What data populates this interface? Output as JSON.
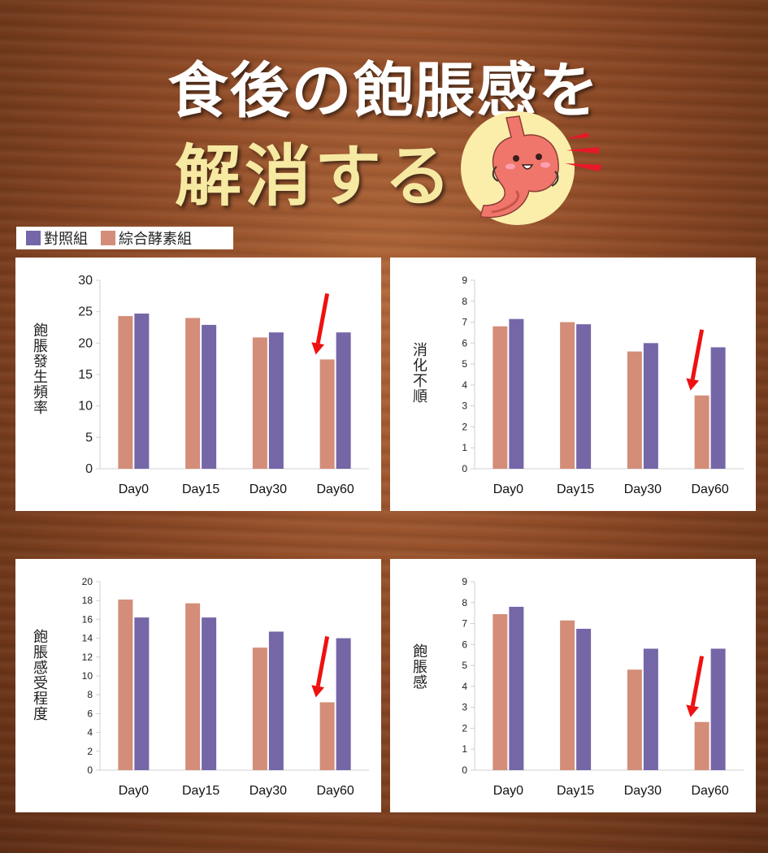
{
  "header": {
    "line1": "食後の飽脹感を",
    "line2": "解消する"
  },
  "colors": {
    "control": "#7566a8",
    "enzyme": "#d38d78",
    "arrow": "#ee1111"
  },
  "icons": [
    "stomach-illustration-icon",
    "red-arrow-icon"
  ],
  "legend": {
    "control": "對照組",
    "enzyme": "綜合酵素組"
  },
  "chart_data": [
    {
      "type": "bar",
      "ylabel": "飽脹發生頻率",
      "categories": [
        "Day0",
        "Day15",
        "Day30",
        "Day60"
      ],
      "ylim": [
        0,
        30
      ],
      "yticks": [
        0,
        5,
        10,
        15,
        20,
        25,
        30
      ],
      "series": [
        {
          "name": "綜合酵素組",
          "values": [
            24.3,
            24,
            20.9,
            17.4
          ]
        },
        {
          "name": "對照組",
          "values": [
            24.7,
            22.9,
            21.7,
            21.7
          ]
        }
      ],
      "annotation": {
        "type": "arrow",
        "category": "Day60",
        "series": "綜合酵素組"
      }
    },
    {
      "type": "bar",
      "ylabel": "消化不順",
      "categories": [
        "Day0",
        "Day15",
        "Day30",
        "Day60"
      ],
      "ylim": [
        0,
        9
      ],
      "yticks": [
        0,
        1,
        2,
        3,
        4,
        5,
        6,
        7,
        8,
        9
      ],
      "series": [
        {
          "name": "綜合酵素組",
          "values": [
            6.8,
            7.0,
            5.6,
            3.5
          ]
        },
        {
          "name": "對照組",
          "values": [
            7.15,
            6.9,
            6.0,
            5.8
          ]
        }
      ],
      "annotation": {
        "type": "arrow",
        "category": "Day60",
        "series": "綜合酵素組"
      }
    },
    {
      "type": "bar",
      "ylabel": "飽脹感受程度",
      "categories": [
        "Day0",
        "Day15",
        "Day30",
        "Day60"
      ],
      "ylim": [
        0,
        20
      ],
      "yticks": [
        0,
        2,
        4,
        6,
        8,
        10,
        12,
        14,
        16,
        18,
        20
      ],
      "series": [
        {
          "name": "綜合酵素組",
          "values": [
            18.1,
            17.7,
            13.0,
            7.2
          ]
        },
        {
          "name": "對照組",
          "values": [
            16.2,
            16.2,
            14.7,
            14.0
          ]
        }
      ],
      "annotation": {
        "type": "arrow",
        "category": "Day60",
        "series": "綜合酵素組"
      }
    },
    {
      "type": "bar",
      "ylabel": "飽脹感",
      "categories": [
        "Day0",
        "Day15",
        "Day30",
        "Day60"
      ],
      "ylim": [
        0,
        9
      ],
      "yticks": [
        0,
        1,
        2,
        3,
        4,
        5,
        6,
        7,
        8,
        9
      ],
      "series": [
        {
          "name": "綜合酵素組",
          "values": [
            7.45,
            7.15,
            4.8,
            2.3
          ]
        },
        {
          "name": "對照組",
          "values": [
            7.8,
            6.75,
            5.8,
            5.8
          ]
        }
      ],
      "annotation": {
        "type": "arrow",
        "category": "Day60",
        "series": "綜合酵素組"
      }
    }
  ]
}
